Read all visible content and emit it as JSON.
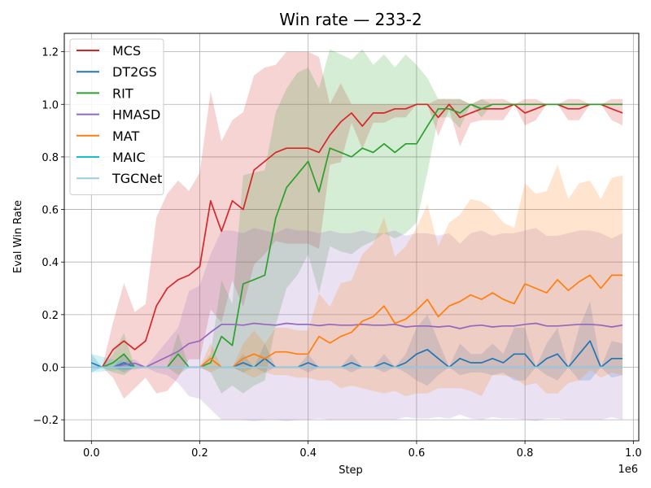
{
  "chart_data": {
    "type": "line",
    "title": "Win rate — 233-2",
    "xlabel": "Step",
    "ylabel": "Eval Win Rate",
    "x_offset_label": "1e6",
    "xlim": [
      -0.05,
      1.01
    ],
    "ylim": [
      -0.28,
      1.27
    ],
    "x_ticks": [
      0.0,
      0.2,
      0.4,
      0.6,
      0.8,
      1.0
    ],
    "x_tick_labels": [
      "0.0",
      "0.2",
      "0.4",
      "0.6",
      "0.8",
      "1.0"
    ],
    "y_ticks": [
      -0.2,
      0.0,
      0.2,
      0.4,
      0.6,
      0.8,
      1.0,
      1.2
    ],
    "y_tick_labels": [
      "−0.2",
      "0.0",
      "0.2",
      "0.4",
      "0.6",
      "0.8",
      "1.0",
      "1.2"
    ],
    "grid": true,
    "legend_position": "top-left",
    "series": [
      {
        "name": "MCS",
        "color": "#d62728",
        "x": [
          0.0,
          0.02,
          0.04,
          0.06,
          0.08,
          0.1,
          0.12,
          0.14,
          0.16,
          0.18,
          0.2,
          0.22,
          0.24,
          0.26,
          0.28,
          0.3,
          0.32,
          0.34,
          0.36,
          0.38,
          0.4,
          0.42,
          0.44,
          0.46,
          0.48,
          0.5,
          0.52,
          0.54,
          0.56,
          0.58,
          0.6,
          0.62,
          0.64,
          0.66,
          0.68,
          0.7,
          0.72,
          0.74,
          0.76,
          0.78,
          0.8,
          0.82,
          0.84,
          0.86,
          0.88,
          0.9,
          0.92,
          0.94,
          0.96,
          0.98
        ],
        "y": [
          0.0,
          0.0,
          0.067,
          0.1,
          0.067,
          0.1,
          0.233,
          0.3,
          0.333,
          0.35,
          0.383,
          0.633,
          0.517,
          0.633,
          0.6,
          0.75,
          0.783,
          0.817,
          0.833,
          0.833,
          0.833,
          0.817,
          0.883,
          0.933,
          0.967,
          0.917,
          0.967,
          0.967,
          0.983,
          0.983,
          1.0,
          1.0,
          0.95,
          1.0,
          0.95,
          0.967,
          0.983,
          0.983,
          0.983,
          1.0,
          0.967,
          0.983,
          1.0,
          1.0,
          0.983,
          0.983,
          1.0,
          1.0,
          0.983,
          0.967
        ],
        "upper": [
          0.0,
          0.0,
          0.17,
          0.32,
          0.21,
          0.24,
          0.57,
          0.66,
          0.71,
          0.67,
          0.74,
          1.05,
          0.86,
          0.94,
          0.97,
          1.11,
          1.14,
          1.15,
          1.2,
          1.2,
          1.2,
          1.18,
          1.0,
          1.08,
          1.0,
          1.0,
          1.0,
          1.0,
          1.0,
          1.0,
          1.0,
          1.0,
          1.02,
          1.02,
          1.02,
          1.0,
          1.02,
          1.02,
          1.02,
          1.0,
          1.02,
          1.02,
          1.0,
          1.0,
          1.02,
          1.02,
          1.0,
          1.0,
          1.02,
          1.02
        ],
        "lower": [
          0.0,
          0.0,
          -0.04,
          -0.12,
          -0.08,
          -0.04,
          -0.1,
          -0.09,
          -0.04,
          0.03,
          0.03,
          0.22,
          0.17,
          0.33,
          0.23,
          0.39,
          0.43,
          0.48,
          0.47,
          0.47,
          0.47,
          0.45,
          0.77,
          0.78,
          0.93,
          0.83,
          0.93,
          0.93,
          0.95,
          0.95,
          1.0,
          1.0,
          0.88,
          0.98,
          0.84,
          0.93,
          0.94,
          0.94,
          0.94,
          1.0,
          0.92,
          0.94,
          1.0,
          1.0,
          0.94,
          0.94,
          1.0,
          1.0,
          0.94,
          0.92
        ]
      },
      {
        "name": "DT2GS",
        "color": "#1f77b4",
        "x": [
          0.0,
          0.02,
          0.04,
          0.06,
          0.08,
          0.1,
          0.12,
          0.14,
          0.16,
          0.18,
          0.2,
          0.22,
          0.24,
          0.26,
          0.28,
          0.3,
          0.32,
          0.34,
          0.36,
          0.38,
          0.4,
          0.42,
          0.44,
          0.46,
          0.48,
          0.5,
          0.52,
          0.54,
          0.56,
          0.58,
          0.6,
          0.62,
          0.64,
          0.66,
          0.68,
          0.7,
          0.72,
          0.74,
          0.76,
          0.78,
          0.8,
          0.82,
          0.84,
          0.86,
          0.88,
          0.9,
          0.92,
          0.94,
          0.96,
          0.98
        ],
        "y": [
          0.017,
          0.0,
          0.0,
          0.017,
          0.0,
          0.0,
          0.0,
          0.0,
          0.0,
          0.0,
          0.0,
          0.0,
          0.0,
          0.0,
          0.017,
          0.0,
          0.033,
          0.0,
          0.0,
          0.0,
          0.017,
          0.0,
          0.0,
          0.0,
          0.017,
          0.0,
          0.0,
          0.017,
          0.0,
          0.017,
          0.05,
          0.067,
          0.033,
          0.0,
          0.033,
          0.017,
          0.017,
          0.033,
          0.017,
          0.05,
          0.05,
          0.0,
          0.033,
          0.05,
          0.0,
          0.05,
          0.1,
          0.0,
          0.033,
          0.033
        ],
        "upper": [
          0.05,
          0.0,
          0.0,
          0.05,
          0.0,
          0.0,
          0.0,
          0.0,
          0.0,
          0.0,
          0.0,
          0.0,
          0.0,
          0.0,
          0.05,
          0.0,
          0.09,
          0.0,
          0.0,
          0.0,
          0.05,
          0.0,
          0.0,
          0.0,
          0.05,
          0.0,
          0.0,
          0.05,
          0.0,
          0.05,
          0.15,
          0.2,
          0.1,
          0.0,
          0.09,
          0.05,
          0.05,
          0.09,
          0.05,
          0.15,
          0.15,
          0.0,
          0.09,
          0.15,
          0.0,
          0.15,
          0.25,
          0.0,
          0.1,
          0.09
        ],
        "lower": [
          -0.02,
          0.0,
          0.0,
          -0.02,
          0.0,
          0.0,
          0.0,
          0.0,
          0.0,
          0.0,
          0.0,
          0.0,
          0.0,
          0.0,
          -0.02,
          0.0,
          -0.02,
          0.0,
          0.0,
          0.0,
          -0.02,
          0.0,
          0.0,
          0.0,
          -0.02,
          0.0,
          0.0,
          -0.02,
          0.0,
          -0.02,
          -0.05,
          -0.07,
          -0.03,
          0.0,
          -0.03,
          -0.02,
          -0.02,
          -0.03,
          -0.02,
          -0.05,
          -0.05,
          0.0,
          -0.03,
          -0.05,
          0.0,
          -0.05,
          -0.05,
          0.0,
          -0.04,
          -0.03
        ]
      },
      {
        "name": "RIT",
        "color": "#2ca02c",
        "x": [
          0.0,
          0.02,
          0.04,
          0.06,
          0.08,
          0.1,
          0.12,
          0.14,
          0.16,
          0.18,
          0.2,
          0.22,
          0.24,
          0.26,
          0.28,
          0.3,
          0.32,
          0.34,
          0.36,
          0.38,
          0.4,
          0.42,
          0.44,
          0.46,
          0.48,
          0.5,
          0.52,
          0.54,
          0.56,
          0.58,
          0.6,
          0.62,
          0.64,
          0.66,
          0.68,
          0.7,
          0.72,
          0.74,
          0.76,
          0.78,
          0.8,
          0.82,
          0.84,
          0.86,
          0.88,
          0.9,
          0.92,
          0.94,
          0.96,
          0.98
        ],
        "y": [
          0.0,
          0.0,
          0.017,
          0.05,
          0.0,
          0.0,
          0.0,
          0.0,
          0.05,
          0.0,
          0.0,
          0.017,
          0.117,
          0.083,
          0.317,
          0.333,
          0.35,
          0.567,
          0.683,
          0.733,
          0.783,
          0.667,
          0.833,
          0.817,
          0.8,
          0.833,
          0.817,
          0.85,
          0.817,
          0.85,
          0.85,
          0.917,
          0.983,
          0.983,
          0.967,
          1.0,
          0.983,
          1.0,
          1.0,
          1.0,
          1.0,
          1.0,
          1.0,
          1.0,
          1.0,
          1.0,
          1.0,
          1.0,
          1.0,
          1.0
        ],
        "upper": [
          0.0,
          0.0,
          0.05,
          0.13,
          0.0,
          0.0,
          0.0,
          0.0,
          0.13,
          0.0,
          0.0,
          0.05,
          0.33,
          0.24,
          0.73,
          0.74,
          0.75,
          0.97,
          1.06,
          1.12,
          1.14,
          1.06,
          1.21,
          1.19,
          1.17,
          1.21,
          1.15,
          1.19,
          1.14,
          1.19,
          1.15,
          1.1,
          1.02,
          1.02,
          1.02,
          1.0,
          1.02,
          1.0,
          1.0,
          1.0,
          1.0,
          1.0,
          1.0,
          1.0,
          1.0,
          1.0,
          1.0,
          1.0,
          1.0,
          1.0
        ],
        "lower": [
          0.0,
          0.0,
          -0.02,
          -0.03,
          0.0,
          0.0,
          0.0,
          0.0,
          -0.03,
          0.0,
          0.0,
          -0.02,
          -0.1,
          -0.07,
          -0.1,
          -0.07,
          -0.05,
          0.16,
          0.3,
          0.35,
          0.43,
          0.28,
          0.46,
          0.44,
          0.43,
          0.46,
          0.48,
          0.51,
          0.49,
          0.51,
          0.55,
          0.74,
          0.95,
          0.95,
          0.91,
          1.0,
          0.95,
          1.0,
          1.0,
          1.0,
          1.0,
          1.0,
          1.0,
          1.0,
          1.0,
          1.0,
          1.0,
          1.0,
          1.0,
          1.0
        ]
      },
      {
        "name": "HMASD",
        "color": "#9467bd",
        "x": [
          0.0,
          0.02,
          0.04,
          0.06,
          0.08,
          0.1,
          0.12,
          0.14,
          0.16,
          0.18,
          0.2,
          0.22,
          0.24,
          0.26,
          0.28,
          0.3,
          0.32,
          0.34,
          0.36,
          0.38,
          0.4,
          0.42,
          0.44,
          0.46,
          0.48,
          0.5,
          0.52,
          0.54,
          0.56,
          0.58,
          0.6,
          0.62,
          0.64,
          0.66,
          0.68,
          0.7,
          0.72,
          0.74,
          0.76,
          0.78,
          0.8,
          0.82,
          0.84,
          0.86,
          0.88,
          0.9,
          0.92,
          0.94,
          0.96,
          0.98
        ],
        "y": [
          0.0,
          0.0,
          0.0,
          0.01,
          0.015,
          0.0,
          0.02,
          0.04,
          0.06,
          0.09,
          0.1,
          0.133,
          0.163,
          0.163,
          0.16,
          0.167,
          0.163,
          0.16,
          0.167,
          0.163,
          0.163,
          0.158,
          0.163,
          0.16,
          0.16,
          0.163,
          0.16,
          0.16,
          0.163,
          0.153,
          0.157,
          0.157,
          0.153,
          0.157,
          0.147,
          0.157,
          0.16,
          0.153,
          0.157,
          0.157,
          0.163,
          0.167,
          0.157,
          0.157,
          0.16,
          0.163,
          0.163,
          0.16,
          0.153,
          0.16
        ],
        "upper": [
          0.0,
          0.0,
          0.0,
          0.02,
          0.03,
          0.0,
          0.05,
          0.1,
          0.15,
          0.29,
          0.31,
          0.43,
          0.52,
          0.52,
          0.51,
          0.53,
          0.52,
          0.51,
          0.53,
          0.52,
          0.52,
          0.51,
          0.52,
          0.51,
          0.51,
          0.52,
          0.51,
          0.51,
          0.52,
          0.5,
          0.51,
          0.51,
          0.5,
          0.51,
          0.47,
          0.51,
          0.52,
          0.5,
          0.51,
          0.51,
          0.52,
          0.53,
          0.5,
          0.5,
          0.51,
          0.52,
          0.52,
          0.51,
          0.49,
          0.51
        ],
        "lower": [
          0.0,
          0.0,
          0.0,
          -0.01,
          -0.01,
          0.0,
          -0.02,
          -0.03,
          -0.06,
          -0.11,
          -0.12,
          -0.16,
          -0.2,
          -0.2,
          -0.2,
          -0.205,
          -0.2,
          -0.2,
          -0.205,
          -0.2,
          -0.2,
          -0.195,
          -0.2,
          -0.2,
          -0.2,
          -0.2,
          -0.2,
          -0.2,
          -0.2,
          -0.19,
          -0.195,
          -0.195,
          -0.19,
          -0.195,
          -0.18,
          -0.195,
          -0.2,
          -0.19,
          -0.195,
          -0.195,
          -0.2,
          -0.205,
          -0.195,
          -0.195,
          -0.2,
          -0.2,
          -0.2,
          -0.2,
          -0.19,
          -0.2
        ]
      },
      {
        "name": "MAT",
        "color": "#ff7f0e",
        "x": [
          0.2,
          0.22,
          0.24,
          0.26,
          0.28,
          0.3,
          0.32,
          0.34,
          0.36,
          0.38,
          0.4,
          0.42,
          0.44,
          0.46,
          0.48,
          0.5,
          0.52,
          0.54,
          0.56,
          0.58,
          0.6,
          0.62,
          0.64,
          0.66,
          0.68,
          0.7,
          0.72,
          0.74,
          0.76,
          0.78,
          0.8,
          0.82,
          0.84,
          0.86,
          0.88,
          0.9,
          0.92,
          0.94,
          0.96,
          0.98
        ],
        "y": [
          0.0,
          0.033,
          0.0,
          0.0,
          0.033,
          0.05,
          0.033,
          0.058,
          0.058,
          0.05,
          0.05,
          0.117,
          0.092,
          0.117,
          0.133,
          0.175,
          0.192,
          0.233,
          0.167,
          0.183,
          0.217,
          0.258,
          0.192,
          0.233,
          0.25,
          0.275,
          0.258,
          0.283,
          0.258,
          0.242,
          0.317,
          0.3,
          0.283,
          0.333,
          0.292,
          0.325,
          0.35,
          0.3,
          0.35,
          0.35
        ],
        "upper": [
          0.0,
          0.09,
          0.0,
          0.0,
          0.09,
          0.14,
          0.09,
          0.15,
          0.15,
          0.14,
          0.14,
          0.28,
          0.23,
          0.32,
          0.33,
          0.43,
          0.47,
          0.57,
          0.42,
          0.46,
          0.53,
          0.62,
          0.46,
          0.55,
          0.58,
          0.64,
          0.63,
          0.6,
          0.55,
          0.53,
          0.7,
          0.66,
          0.67,
          0.77,
          0.64,
          0.7,
          0.71,
          0.64,
          0.72,
          0.73
        ],
        "lower": [
          0.0,
          -0.02,
          0.0,
          0.0,
          -0.02,
          -0.04,
          -0.02,
          -0.03,
          -0.03,
          -0.04,
          -0.04,
          -0.05,
          -0.05,
          -0.08,
          -0.07,
          -0.08,
          -0.09,
          -0.1,
          -0.09,
          -0.11,
          -0.1,
          -0.1,
          -0.08,
          -0.08,
          -0.08,
          -0.09,
          -0.11,
          -0.03,
          -0.03,
          -0.04,
          -0.07,
          -0.06,
          -0.1,
          -0.1,
          -0.06,
          -0.05,
          -0.01,
          -0.04,
          -0.02,
          -0.03
        ]
      },
      {
        "name": "MAIC",
        "color": "#17becf",
        "x": [
          0.0,
          0.1,
          0.2,
          0.3,
          0.4,
          0.5,
          0.6,
          0.7,
          0.8,
          0.9,
          0.98
        ],
        "y": [
          0.0,
          0.0,
          0.0,
          0.0,
          0.0,
          0.0,
          0.0,
          0.0,
          0.0,
          0.0,
          0.0
        ],
        "upper": [
          0.05,
          0.0,
          0.0,
          0.0,
          0.0,
          0.0,
          0.0,
          0.0,
          0.0,
          0.0,
          0.0
        ],
        "lower": [
          -0.02,
          0.0,
          0.0,
          0.0,
          0.0,
          0.0,
          0.0,
          0.0,
          0.0,
          0.0,
          0.0
        ]
      },
      {
        "name": "TGCNet",
        "color": "#9ecae1",
        "x": [
          0.0,
          0.1,
          0.2,
          0.3,
          0.4,
          0.5,
          0.6,
          0.7,
          0.8,
          0.9,
          0.98
        ],
        "y": [
          0.0,
          0.0,
          0.0,
          0.0,
          0.0,
          0.0,
          0.0,
          0.0,
          0.0,
          0.0,
          0.0
        ],
        "upper": [
          0.0,
          0.0,
          0.0,
          0.0,
          0.0,
          0.0,
          0.0,
          0.0,
          0.0,
          0.0,
          0.0
        ],
        "lower": [
          0.0,
          0.0,
          0.0,
          0.0,
          0.0,
          0.0,
          0.0,
          0.0,
          0.0,
          0.0,
          0.0
        ]
      }
    ]
  }
}
